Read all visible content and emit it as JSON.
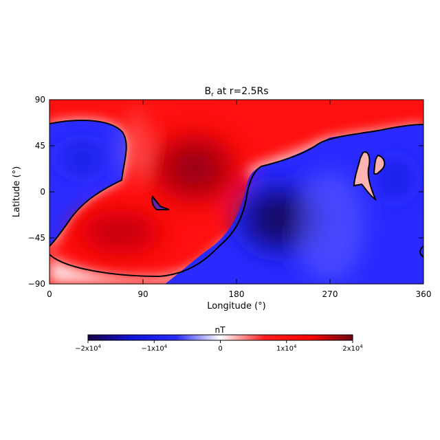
{
  "chart_data": {
    "type": "heatmap",
    "title_main": "B",
    "title_sub": "r",
    "title_rest": " at r=2.5Rs",
    "xlabel": "Longitude (°)",
    "ylabel": "Latitude (°)",
    "xlim": [
      0,
      360
    ],
    "ylim": [
      -90,
      90
    ],
    "xticks": [
      "0",
      "90",
      "180",
      "270",
      "360"
    ],
    "xtick_values": [
      0,
      90,
      180,
      270,
      360
    ],
    "yticks": [
      "90",
      "45",
      "0",
      "−45",
      "−90"
    ],
    "ytick_values": [
      90,
      45,
      0,
      -45,
      -90
    ],
    "colorbar": {
      "label": "nT",
      "range": [
        -20000,
        20000
      ],
      "tick_values": [
        -20000,
        -10000,
        0,
        10000,
        20000
      ],
      "tick_mantissas": [
        "−2x10",
        "−1x10",
        "0",
        "1x10",
        "2x10"
      ],
      "tick_exponents": [
        "4",
        "4",
        "",
        "4",
        "4"
      ],
      "colors": [
        "#16004a",
        "#1010d8",
        "#2a2aff",
        "#ffffff",
        "#ff2020",
        "#ff0000",
        "#6e0010"
      ]
    },
    "regions": [
      {
        "sign": "positive",
        "peak_nT": 20000,
        "peak_lon": 140,
        "peak_lat": 15
      },
      {
        "sign": "positive",
        "peak_nT": 17000,
        "peak_lon": 70,
        "peak_lat": -35
      },
      {
        "sign": "negative",
        "peak_nT": -20000,
        "peak_lon": 220,
        "peak_lat": -25
      },
      {
        "sign": "negative",
        "peak_nT": -12000,
        "peak_lon": 30,
        "peak_lat": 30
      },
      {
        "sign": "negative",
        "peak_nT": -9000,
        "peak_lon": 330,
        "peak_lat": 10
      },
      {
        "sign": "negative",
        "peak_nT": -7000,
        "peak_lon": 100,
        "peak_lat": -8
      },
      {
        "sign": "positive",
        "peak_nT": 6000,
        "peak_lon": 308,
        "peak_lat": 18
      }
    ],
    "neutral_line_color": "#000000"
  }
}
